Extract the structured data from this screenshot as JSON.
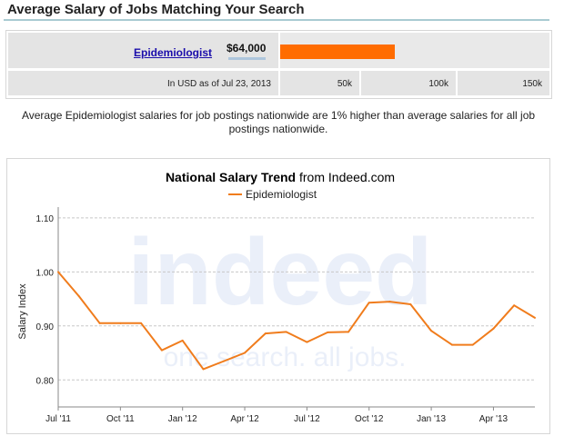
{
  "header": {
    "title": "Average Salary of Jobs Matching Your Search"
  },
  "salary_bar": {
    "job_title": "Epidemiologist",
    "amount": "$64,000",
    "value": 64000,
    "scale_max": 150000,
    "bar_color": "#ff6c00",
    "date_note": "In USD as of Jul 23, 2013",
    "ticks": [
      "50k",
      "100k",
      "150k"
    ]
  },
  "comparison_text": "Average Epidemiologist salaries for job postings nationwide are 1% higher than average salaries for all job postings nationwide.",
  "chart_data": {
    "type": "line",
    "title_bold": "National Salary Trend",
    "title_rest": " from Indeed.com",
    "ylabel": "Salary Index",
    "ylim": [
      0.75,
      1.12
    ],
    "yticks": [
      0.8,
      0.9,
      1.0,
      1.1
    ],
    "ytick_labels": [
      "0.80",
      "0.90",
      "1.00",
      "1.10"
    ],
    "xticks": [
      "Jul '11",
      "Oct '11",
      "Jan '12",
      "Apr '12",
      "Jul '12",
      "Oct '12",
      "Jan '13",
      "Apr '13"
    ],
    "grid": true,
    "legend_position": "top-center",
    "watermark": {
      "logo": "indeed",
      "tagline": "one search. all jobs."
    },
    "series": [
      {
        "name": "Epidemiologist",
        "color": "#f07c1c",
        "x": [
          "2011-07",
          "2011-08",
          "2011-09",
          "2011-10",
          "2011-11",
          "2011-12",
          "2012-01",
          "2012-02",
          "2012-03",
          "2012-04",
          "2012-05",
          "2012-06",
          "2012-07",
          "2012-08",
          "2012-09",
          "2012-10",
          "2012-11",
          "2012-12",
          "2013-01",
          "2013-02",
          "2013-03",
          "2013-04",
          "2013-05",
          "2013-06"
        ],
        "values": [
          1.0,
          0.955,
          0.905,
          0.905,
          0.905,
          0.855,
          0.873,
          0.82,
          0.835,
          0.85,
          0.886,
          0.889,
          0.87,
          0.888,
          0.889,
          0.943,
          0.945,
          0.94,
          0.891,
          0.865,
          0.865,
          0.895,
          0.938,
          0.915
        ]
      }
    ]
  }
}
